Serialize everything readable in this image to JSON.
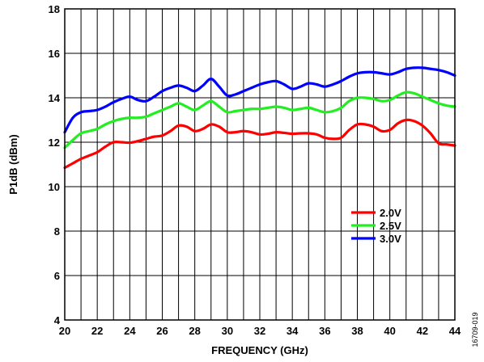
{
  "chart_data": {
    "type": "line",
    "title": "",
    "xlabel": "FREQUENCY (GHz)",
    "ylabel": "P1dB (dBm)",
    "xlim": [
      20,
      44
    ],
    "ylim": [
      4,
      18
    ],
    "xticks": [
      20,
      22,
      24,
      26,
      28,
      30,
      32,
      34,
      36,
      38,
      40,
      42,
      44
    ],
    "yticks": [
      4,
      6,
      8,
      10,
      12,
      14,
      16,
      18
    ],
    "x_minor_step": 1,
    "grid": true,
    "legend_position": "right-middle",
    "figure_id": "16709-019",
    "series": [
      {
        "name": "2.0V",
        "color": "#ff0000",
        "x": [
          20,
          20.5,
          21,
          21.5,
          22,
          22.5,
          23,
          23.5,
          24,
          24.5,
          25,
          25.5,
          26,
          26.5,
          27,
          27.5,
          28,
          28.5,
          29,
          29.5,
          30,
          30.5,
          31,
          31.5,
          32,
          32.5,
          33,
          33.5,
          34,
          34.5,
          35,
          35.5,
          36,
          36.5,
          37,
          37.5,
          38,
          38.5,
          39,
          39.5,
          40,
          40.5,
          41,
          41.5,
          42,
          42.5,
          43,
          43.5,
          44
        ],
        "y": [
          10.85,
          11.05,
          11.25,
          11.4,
          11.55,
          11.8,
          12.0,
          12.0,
          11.98,
          12.05,
          12.15,
          12.25,
          12.3,
          12.5,
          12.75,
          12.7,
          12.5,
          12.6,
          12.8,
          12.7,
          12.45,
          12.45,
          12.5,
          12.45,
          12.35,
          12.38,
          12.45,
          12.42,
          12.38,
          12.4,
          12.4,
          12.35,
          12.2,
          12.15,
          12.2,
          12.55,
          12.8,
          12.8,
          12.7,
          12.5,
          12.55,
          12.85,
          13.0,
          12.95,
          12.75,
          12.4,
          11.95,
          11.9,
          11.85
        ]
      },
      {
        "name": "2.5V",
        "color": "#22ee22",
        "x": [
          20,
          20.5,
          21,
          21.5,
          22,
          22.5,
          23,
          23.5,
          24,
          24.5,
          25,
          25.5,
          26,
          26.5,
          27,
          27.5,
          28,
          28.5,
          29,
          29.5,
          30,
          30.5,
          31,
          31.5,
          32,
          32.5,
          33,
          33.5,
          34,
          34.5,
          35,
          35.5,
          36,
          36.5,
          37,
          37.5,
          38,
          38.5,
          39,
          39.5,
          40,
          40.5,
          41,
          41.5,
          42,
          42.5,
          43,
          43.5,
          44
        ],
        "y": [
          11.75,
          12.1,
          12.4,
          12.5,
          12.6,
          12.8,
          12.95,
          13.05,
          13.1,
          13.1,
          13.15,
          13.3,
          13.45,
          13.6,
          13.75,
          13.6,
          13.45,
          13.65,
          13.85,
          13.6,
          13.35,
          13.4,
          13.45,
          13.5,
          13.5,
          13.55,
          13.6,
          13.55,
          13.45,
          13.5,
          13.55,
          13.45,
          13.35,
          13.4,
          13.55,
          13.85,
          14.0,
          14.0,
          13.95,
          13.85,
          13.9,
          14.1,
          14.25,
          14.2,
          14.05,
          13.9,
          13.75,
          13.65,
          13.6
        ]
      },
      {
        "name": "3.0V",
        "color": "#0000ff",
        "x": [
          20,
          20.5,
          21,
          21.5,
          22,
          22.5,
          23,
          23.5,
          24,
          24.5,
          25,
          25.5,
          26,
          26.5,
          27,
          27.5,
          28,
          28.5,
          29,
          29.5,
          30,
          30.5,
          31,
          31.5,
          32,
          32.5,
          33,
          33.5,
          34,
          34.5,
          35,
          35.5,
          36,
          36.5,
          37,
          37.5,
          38,
          38.5,
          39,
          39.5,
          40,
          40.5,
          41,
          41.5,
          42,
          42.5,
          43,
          43.5,
          44
        ],
        "y": [
          12.45,
          13.1,
          13.35,
          13.4,
          13.45,
          13.6,
          13.8,
          13.95,
          14.05,
          13.9,
          13.85,
          14.05,
          14.3,
          14.45,
          14.55,
          14.45,
          14.3,
          14.55,
          14.85,
          14.5,
          14.1,
          14.15,
          14.3,
          14.45,
          14.6,
          14.7,
          14.75,
          14.6,
          14.4,
          14.5,
          14.65,
          14.6,
          14.5,
          14.6,
          14.75,
          14.95,
          15.1,
          15.15,
          15.15,
          15.1,
          15.05,
          15.15,
          15.3,
          15.35,
          15.35,
          15.3,
          15.25,
          15.15,
          15.0
        ]
      }
    ]
  }
}
